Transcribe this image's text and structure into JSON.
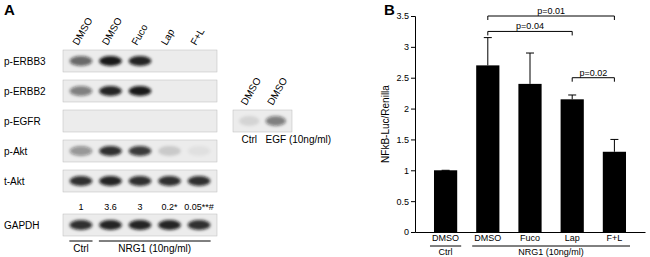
{
  "panel_a": {
    "label": "A",
    "lanes": [
      "DMSO",
      "DMSO",
      "Fuco",
      "Lap",
      "F+L"
    ],
    "rows": [
      {
        "label": "p-ERBB3",
        "intensity": [
          0.6,
          0.95,
          0.9,
          0,
          0
        ]
      },
      {
        "label": "p-ERBB2",
        "intensity": [
          0.5,
          0.9,
          0.95,
          0,
          0
        ]
      },
      {
        "label": "p-EGFR",
        "intensity": [
          0,
          0,
          0,
          0,
          0
        ]
      },
      {
        "label": "p-Akt",
        "intensity": [
          0.4,
          0.85,
          0.8,
          0.15,
          0.05
        ]
      },
      {
        "label": "t-Akt",
        "intensity": [
          0.85,
          0.9,
          0.85,
          0.85,
          0.85
        ]
      },
      {
        "quantification": [
          "1",
          "3.6",
          "3",
          "0.2*",
          "0.05**#"
        ]
      },
      {
        "label": "GAPDH",
        "intensity": [
          0.85,
          0.9,
          0.9,
          0.9,
          0.85
        ]
      }
    ],
    "inset": {
      "row": "p-EGFR",
      "lanes": [
        "DMSO",
        "DMSO"
      ],
      "intensity": [
        0.1,
        0.5
      ],
      "conditions": [
        "Ctrl",
        "EGF (10ng/ml)"
      ]
    },
    "groups": [
      {
        "label": "Ctrl",
        "from": 0,
        "to": 0
      },
      {
        "label": "NRG1 (10ng/ml)",
        "from": 1,
        "to": 4
      }
    ]
  },
  "chart_data": {
    "type": "bar",
    "panel_label": "B",
    "y_label": "NFkB-Luc/Renilla",
    "categories": [
      "DMSO",
      "DMSO",
      "Fuco",
      "Lap",
      "F+L"
    ],
    "values": [
      1,
      2.7,
      2.4,
      2.15,
      1.3
    ],
    "errors": [
      0,
      0.45,
      0.5,
      0.07,
      0.2
    ],
    "color": "#000000",
    "ylim": [
      0,
      3.5
    ],
    "yticks": [
      0,
      0.5,
      1,
      1.5,
      2,
      2.5,
      3,
      3.5
    ],
    "groups": [
      {
        "label": "Ctrl",
        "from": 0,
        "to": 0
      },
      {
        "label": "NRG1 (10ng/ml)",
        "from": 1,
        "to": 4
      }
    ],
    "annotations": [
      {
        "text": "p=0.04",
        "from": 1,
        "to": 3,
        "y": 3.25
      },
      {
        "text": "p=0.01",
        "from": 1,
        "to": 4,
        "y": 3.5
      },
      {
        "text": "p=0.02",
        "from": 3,
        "to": 4,
        "y": 2.5
      }
    ]
  }
}
